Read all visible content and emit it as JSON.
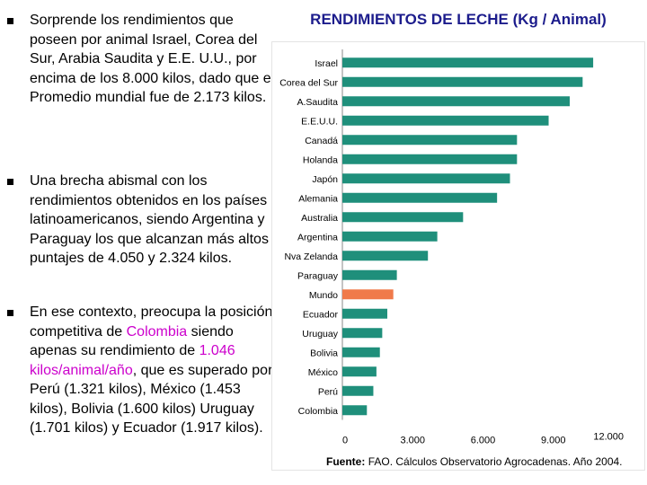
{
  "bullets": [
    {
      "text": "Sorprende los rendimientos que poseen por animal Israel,  Corea del Sur, Arabia Saudita y E.E. U.U., por encima de los 8.000 kilos, dado que el Promedio mundial fue de 2.173 kilos."
    },
    {
      "text": "Una brecha abismal con los rendimientos obtenidos en los países latinoamericanos, siendo Argentina y Paraguay los que alcanzan más altos puntajes de 4.050 y 2.324 kilos."
    },
    {
      "text_before": "En ese contexto, preocupa la posición competitiva de ",
      "highlight_1": "Colombia",
      "text_middle": " siendo apenas su rendimiento de ",
      "highlight_2": "1.046 kilos/animal/año",
      "text_after": ", que es superado por Perú (1.321 kilos), México (1.453 kilos), Bolivia (1.600 kilos) Uruguay (1.701 kilos) y Ecuador (1.917 kilos)."
    }
  ],
  "source": {
    "label": "Fuente:",
    "text": "FAO. Cálculos Observatorio Agrocadenas. Año 2004."
  },
  "colors": {
    "bar": "#1f8f7b",
    "highlight_bar": "#f07a4a",
    "title": "#1c1c8c",
    "highlight_text": "#cc00cc"
  },
  "chart_data": {
    "type": "bar",
    "orientation": "horizontal",
    "title": "RENDIMIENTOS DE LECHE  (Kg / Animal)",
    "categories": [
      "Israel",
      "Corea del Sur",
      "A.Saudita",
      "E.E.U.U.",
      "Canadá",
      "Holanda",
      "Japón",
      "Alemania",
      "Australia",
      "Argentina",
      "Nva Zelanda",
      "Paraguay",
      "Mundo",
      "Ecuador",
      "Uruguay",
      "Bolivia",
      "México",
      "Perú",
      "Colombia"
    ],
    "values": [
      10700,
      10250,
      9700,
      8800,
      7450,
      7450,
      7150,
      6600,
      5150,
      4050,
      3650,
      2324,
      2173,
      1917,
      1701,
      1600,
      1453,
      1321,
      1046
    ],
    "highlight_category": "Mundo",
    "xlim": [
      0,
      12000
    ],
    "x_ticks": [
      0,
      3000,
      6000,
      9000,
      12000
    ],
    "x_tick_labels": [
      "0",
      "3.000",
      "6.000",
      "9.000",
      "12.000"
    ],
    "grid": false,
    "legend": "none"
  }
}
